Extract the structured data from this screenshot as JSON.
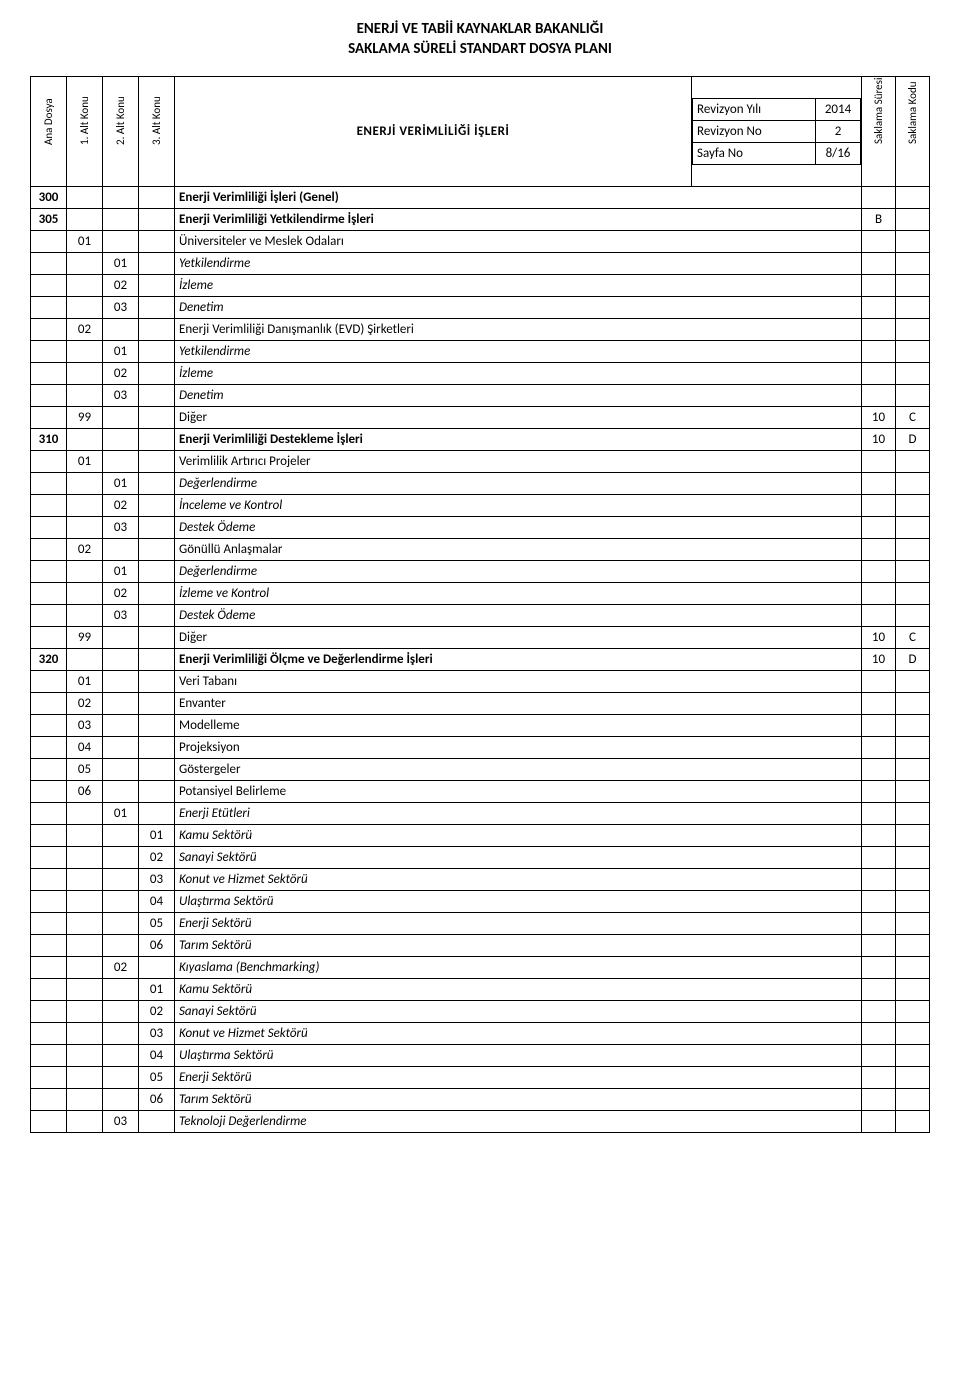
{
  "doc": {
    "title1": "ENERJİ VE TABİİ KAYNAKLAR BAKANLIĞI",
    "title2": "SAKLAMA SÜRELİ STANDART DOSYA PLANI"
  },
  "header": {
    "col_ana": "Ana Dosya",
    "col_k1": "1. Alt Konu",
    "col_k2": "2. Alt Konu",
    "col_k3": "3. Alt Konu",
    "main_heading": "ENERJİ VERİMLİLİĞİ İŞLERİ",
    "col_sure": "Saklama Süresi",
    "col_kod": "Saklama Kodu",
    "info": {
      "rev_yil_label": "Revizyon Yılı",
      "rev_yil_val": "2014",
      "rev_no_label": "Revizyon No",
      "rev_no_val": "2",
      "sayfa_label": "Sayfa No",
      "sayfa_val": "8/16"
    }
  },
  "rows": [
    {
      "ana": "300",
      "desc": "Enerji Verimliliği İşleri (Genel)",
      "bold": true
    },
    {
      "ana": "305",
      "desc": "Enerji Verimliliği Yetkilendirme İşleri",
      "bold": true,
      "sure": "B"
    },
    {
      "k1": "01",
      "desc": "Üniversiteler ve Meslek Odaları"
    },
    {
      "k2": "01",
      "desc": "Yetkilendirme",
      "italic": true
    },
    {
      "k2": "02",
      "desc": "İzleme",
      "italic": true
    },
    {
      "k2": "03",
      "desc": "Denetim",
      "italic": true
    },
    {
      "k1": "02",
      "desc": "Enerji Verimliliği Danışmanlık (EVD) Şirketleri"
    },
    {
      "k2": "01",
      "desc": "Yetkilendirme",
      "italic": true
    },
    {
      "k2": "02",
      "desc": "İzleme",
      "italic": true
    },
    {
      "k2": "03",
      "desc": "Denetim",
      "italic": true
    },
    {
      "k1": "99",
      "desc": "Diğer",
      "sure": "10",
      "kod": "C"
    },
    {
      "ana": "310",
      "desc": "Enerji Verimliliği Destekleme İşleri",
      "bold": true,
      "sure": "10",
      "kod": "D"
    },
    {
      "k1": "01",
      "desc": "Verimlilik Artırıcı Projeler"
    },
    {
      "k2": "01",
      "desc": "Değerlendirme",
      "italic": true
    },
    {
      "k2": "02",
      "desc": "İnceleme ve Kontrol",
      "italic": true
    },
    {
      "k2": "03",
      "desc": "Destek Ödeme",
      "italic": true
    },
    {
      "k1": "02",
      "desc": "Gönüllü Anlaşmalar"
    },
    {
      "k2": "01",
      "desc": "Değerlendirme",
      "italic": true
    },
    {
      "k2": "02",
      "desc": "İzleme ve Kontrol",
      "italic": true
    },
    {
      "k2": "03",
      "desc": "Destek Ödeme",
      "italic": true
    },
    {
      "k1": "99",
      "desc": "Diğer",
      "sure": "10",
      "kod": "C"
    },
    {
      "ana": "320",
      "desc": "Enerji Verimliliği Ölçme ve Değerlendirme İşleri",
      "bold": true,
      "sure": "10",
      "kod": "D"
    },
    {
      "k1": "01",
      "desc": "Veri Tabanı"
    },
    {
      "k1": "02",
      "desc": "Envanter"
    },
    {
      "k1": "03",
      "desc": "Modelleme"
    },
    {
      "k1": "04",
      "desc": "Projeksiyon"
    },
    {
      "k1": "05",
      "desc": "Göstergeler"
    },
    {
      "k1": "06",
      "desc": "Potansiyel Belirleme"
    },
    {
      "k2": "01",
      "desc": "Enerji Etütleri",
      "italic": true
    },
    {
      "k3": "01",
      "desc": "Kamu Sektörü",
      "italic": true
    },
    {
      "k3": "02",
      "desc": "Sanayi Sektörü",
      "italic": true
    },
    {
      "k3": "03",
      "desc": "Konut ve Hizmet Sektörü",
      "italic": true
    },
    {
      "k3": "04",
      "desc": "Ulaştırma Sektörü",
      "italic": true
    },
    {
      "k3": "05",
      "desc": "Enerji Sektörü",
      "italic": true
    },
    {
      "k3": "06",
      "desc": "Tarım Sektörü",
      "italic": true
    },
    {
      "k2": "02",
      "desc": "Kıyaslama (Benchmarking)",
      "italic": true
    },
    {
      "k3": "01",
      "desc": "Kamu Sektörü",
      "italic": true
    },
    {
      "k3": "02",
      "desc": "Sanayi Sektörü",
      "italic": true
    },
    {
      "k3": "03",
      "desc": "Konut ve Hizmet Sektörü",
      "italic": true
    },
    {
      "k3": "04",
      "desc": "Ulaştırma Sektörü",
      "italic": true
    },
    {
      "k3": "05",
      "desc": "Enerji Sektörü",
      "italic": true
    },
    {
      "k3": "06",
      "desc": "Tarım Sektörü",
      "italic": true
    },
    {
      "k2": "03",
      "desc": "Teknoloji Değerlendirme",
      "italic": true
    }
  ]
}
